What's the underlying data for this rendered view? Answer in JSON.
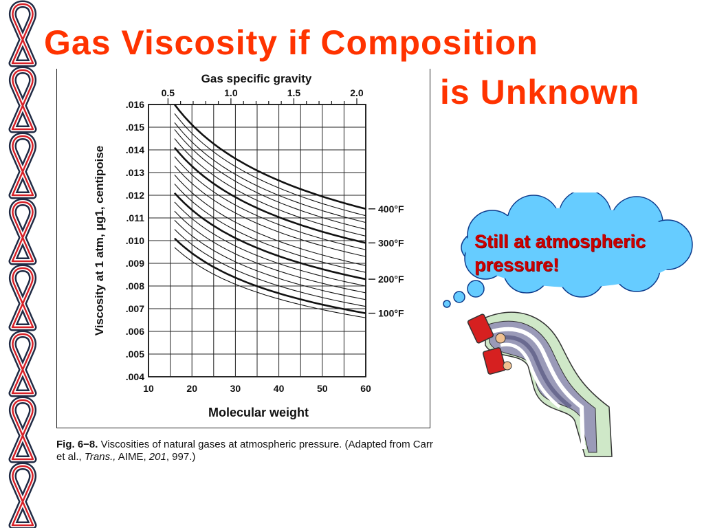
{
  "slide": {
    "title_line1": "Gas Viscosity if Composition",
    "title_line2": "is Unknown",
    "bubble_text": "Still at atmospheric pressure!",
    "caption_label": "Fig. 6−8.",
    "caption_text": " Viscosities of natural gases at atmospheric pressure. (Adapted from Carr et al., ",
    "caption_journal": "Trans.,",
    "caption_aime": " AIME, ",
    "caption_volume": "201",
    "caption_pages": ", 997.)",
    "colors": {
      "title": "#ff3300",
      "bubble_fill": "#66ccff",
      "bubble_text": "#cc0000"
    },
    "decor_icon": "awareness-ribbon-icon"
  },
  "chart_data": {
    "type": "line",
    "xlabel": "Molecular weight",
    "ylabel": "Viscosity  at  1  atm,  μg1,  centipoise",
    "top_axis_label": "Gas specific gravity",
    "xlim": [
      10,
      60
    ],
    "ylim": [
      0.004,
      0.016
    ],
    "x_ticks": [
      "10",
      "20",
      "30",
      "40",
      "50",
      "60"
    ],
    "y_ticks": [
      ".004",
      ".005",
      ".006",
      ".007",
      ".008",
      ".009",
      ".010",
      ".011",
      ".012",
      ".013",
      ".014",
      ".015",
      ".016"
    ],
    "top_ticks": [
      {
        "label": "0.5",
        "sg": 0.5
      },
      {
        "label": "1.0",
        "sg": 1.0
      },
      {
        "label": "1.5",
        "sg": 1.5
      },
      {
        "label": "2.0",
        "sg": 2.0
      }
    ],
    "grid": true,
    "curve_x_range": [
      16,
      60
    ],
    "series": [
      {
        "temp_f": 400,
        "name": "400°F",
        "labeled": true,
        "bold": true,
        "values": [
          0.016,
          0.0114
        ]
      },
      {
        "temp_f": 380,
        "labeled": false,
        "bold": false,
        "values": [
          0.0156,
          0.0111
        ]
      },
      {
        "temp_f": 360,
        "labeled": false,
        "bold": false,
        "values": [
          0.0152,
          0.0108
        ]
      },
      {
        "temp_f": 340,
        "labeled": false,
        "bold": false,
        "values": [
          0.0149,
          0.0105
        ]
      },
      {
        "temp_f": 320,
        "labeled": false,
        "bold": false,
        "values": [
          0.0145,
          0.0102
        ]
      },
      {
        "temp_f": 300,
        "name": "300°F",
        "labeled": true,
        "bold": true,
        "values": [
          0.0141,
          0.0099
        ]
      },
      {
        "temp_f": 280,
        "labeled": false,
        "bold": false,
        "values": [
          0.0137,
          0.0096
        ]
      },
      {
        "temp_f": 260,
        "labeled": false,
        "bold": false,
        "values": [
          0.0133,
          0.0093
        ]
      },
      {
        "temp_f": 240,
        "labeled": false,
        "bold": false,
        "values": [
          0.0129,
          0.0089
        ]
      },
      {
        "temp_f": 220,
        "labeled": false,
        "bold": false,
        "values": [
          0.0125,
          0.0086
        ]
      },
      {
        "temp_f": 200,
        "name": "200°F",
        "labeled": true,
        "bold": true,
        "values": [
          0.0121,
          0.0083
        ]
      },
      {
        "temp_f": 180,
        "labeled": false,
        "bold": false,
        "values": [
          0.0117,
          0.008
        ]
      },
      {
        "temp_f": 160,
        "labeled": false,
        "bold": false,
        "values": [
          0.0113,
          0.0077
        ]
      },
      {
        "temp_f": 140,
        "labeled": false,
        "bold": false,
        "values": [
          0.0109,
          0.0074
        ]
      },
      {
        "temp_f": 120,
        "labeled": false,
        "bold": false,
        "values": [
          0.0105,
          0.0071
        ]
      },
      {
        "temp_f": 100,
        "name": "100°F",
        "labeled": true,
        "bold": true,
        "values": [
          0.0101,
          0.0068
        ]
      },
      {
        "temp_f": 80,
        "labeled": false,
        "bold": false,
        "values": [
          0.0097,
          0.0066
        ]
      }
    ]
  }
}
